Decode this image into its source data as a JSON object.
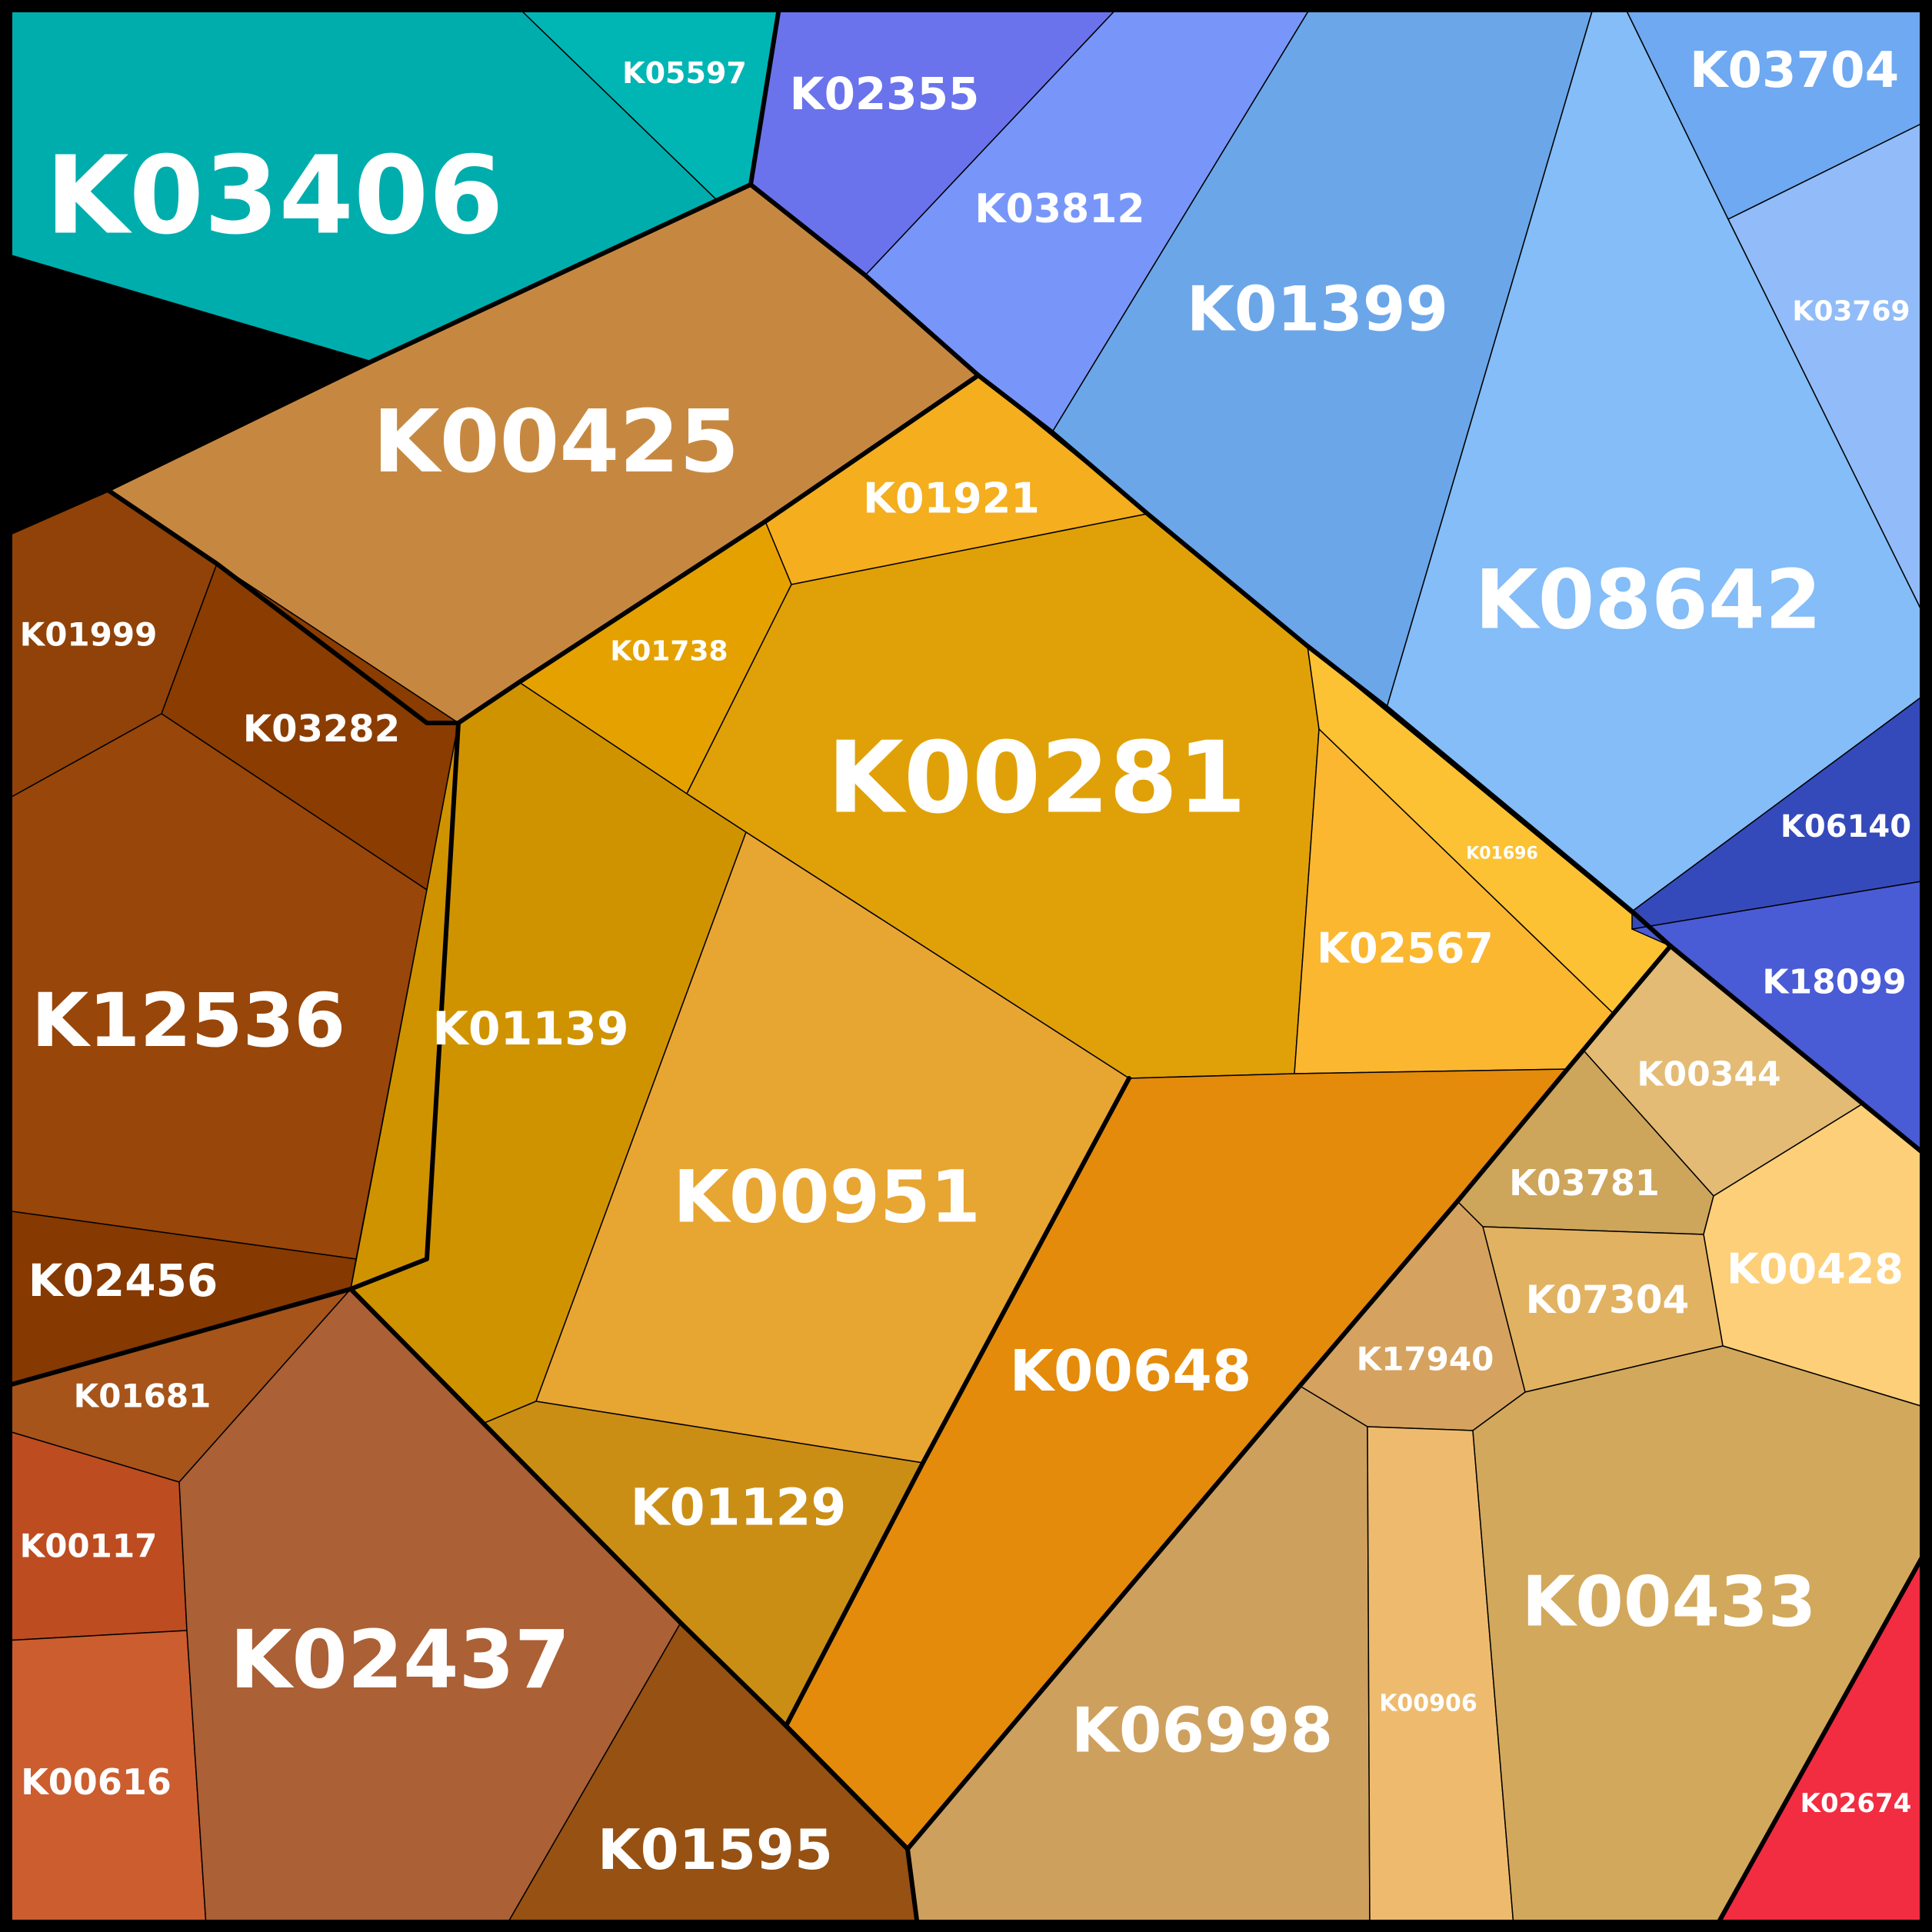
{
  "cells": [
    {
      "id": "K03406",
      "color": "#00ADAD"
    },
    {
      "id": "K05597",
      "color": "#00B6B4"
    },
    {
      "id": "K02355",
      "color": "#6A73EC"
    },
    {
      "id": "K03812",
      "color": "#7896F9"
    },
    {
      "id": "K01399",
      "color": "#6BA6E9"
    },
    {
      "id": "K08642",
      "color": "#84BDF7"
    },
    {
      "id": "K03704",
      "color": "#6EA9F2"
    },
    {
      "id": "K03769",
      "color": "#91BCF9"
    },
    {
      "id": "K00425",
      "color": "#C68840"
    },
    {
      "id": "K01921",
      "color": "#F4AE1E"
    },
    {
      "id": "K01738",
      "color": "#E5A100"
    },
    {
      "id": "K00281",
      "color": "#E0A108"
    },
    {
      "id": "K01696",
      "color": "#FCC233"
    },
    {
      "id": "K02567",
      "color": "#FBB730"
    },
    {
      "id": "K06140",
      "color": "#354ABA"
    },
    {
      "id": "K18099",
      "color": "#4A5BD6"
    },
    {
      "id": "K01999",
      "color": "#914208"
    },
    {
      "id": "K03282",
      "color": "#8B3C00"
    },
    {
      "id": "K12536",
      "color": "#98460A"
    },
    {
      "id": "K02456",
      "color": "#863900"
    },
    {
      "id": "K01139",
      "color": "#D09300"
    },
    {
      "id": "K00951",
      "color": "#E7A532"
    },
    {
      "id": "K00648",
      "color": "#E48B0B"
    },
    {
      "id": "K00344",
      "color": "#E3BB75"
    },
    {
      "id": "K03781",
      "color": "#CDA55B"
    },
    {
      "id": "K00428",
      "color": "#FDCF79"
    },
    {
      "id": "K07304",
      "color": "#E1B261"
    },
    {
      "id": "K17940",
      "color": "#D5A260"
    },
    {
      "id": "K01681",
      "color": "#A6541A"
    },
    {
      "id": "K00117",
      "color": "#BD4C20"
    },
    {
      "id": "K00616",
      "color": "#CC5D2F"
    },
    {
      "id": "K02437",
      "color": "#AB6035"
    },
    {
      "id": "K01129",
      "color": "#CB8E15"
    },
    {
      "id": "K01595",
      "color": "#965113"
    },
    {
      "id": "K06998",
      "color": "#CEA05E"
    },
    {
      "id": "K00906",
      "color": "#EEBB6E"
    },
    {
      "id": "K00433",
      "color": "#D2A85C"
    },
    {
      "id": "K02674",
      "color": "#F22C41"
    }
  ]
}
